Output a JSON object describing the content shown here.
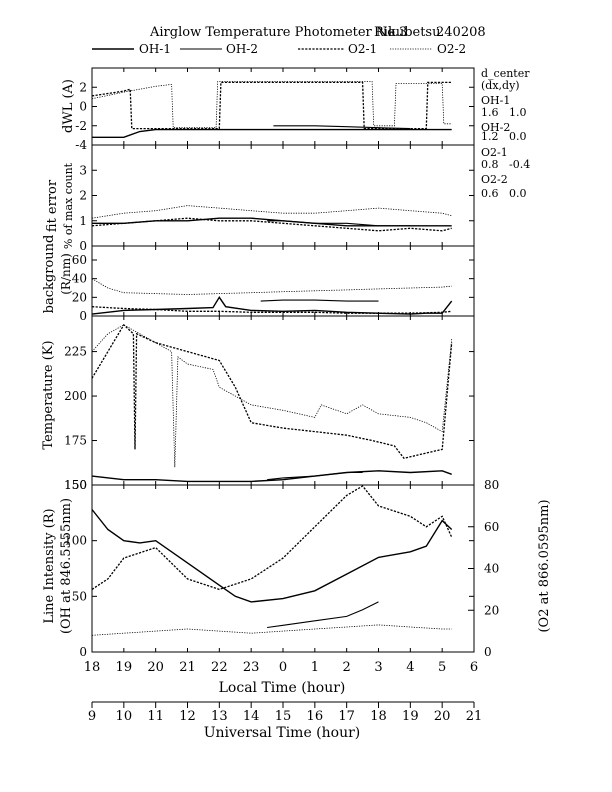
{
  "header": {
    "title": "Airglow Temperature Photometer No.3",
    "station": "Rikubetsu",
    "date": "240208"
  },
  "legend": [
    {
      "name": "OH-1",
      "style": "solid-thick"
    },
    {
      "name": "OH-2",
      "style": "solid-thin"
    },
    {
      "name": "O2-1",
      "style": "dashed"
    },
    {
      "name": "O2-2",
      "style": "dotted"
    }
  ],
  "side_info": {
    "heading1": "d_center",
    "heading2": "(dx,dy)",
    "rows": [
      {
        "label": "OH-1",
        "value": "1.6   1.0"
      },
      {
        "label": "OH-2",
        "value": "1.2   0.0"
      },
      {
        "label": "O2-1",
        "value": "0.8   -0.4"
      },
      {
        "label": "O2-2",
        "value": "0.6   0.0"
      }
    ]
  },
  "axes": {
    "lt_label": "Local Time (hour)",
    "ut_label": "Universal Time (hour)",
    "lt_ticks": [
      "18",
      "19",
      "20",
      "21",
      "22",
      "23",
      "0",
      "1",
      "2",
      "3",
      "4",
      "5",
      "6"
    ],
    "ut_ticks": [
      "9",
      "10",
      "11",
      "12",
      "13",
      "14",
      "15",
      "16",
      "17",
      "18",
      "19",
      "20",
      "21"
    ]
  },
  "chart_data": [
    {
      "type": "line",
      "panel": "dWL",
      "ylabel": "dWL (A)",
      "ylim": [
        -4,
        4
      ],
      "yticks": [
        "2",
        "0",
        "-2",
        "-4"
      ],
      "x_unit": "local time hour (18 = 18 LT, 30 = 06 LT)",
      "series": [
        {
          "name": "OH-1",
          "x": [
            18.0,
            19.0,
            19.5,
            20.0,
            21.0,
            22.0,
            23.0,
            24.0,
            25.0,
            26.0,
            27.0,
            28.0,
            29.0,
            29.3
          ],
          "y": [
            -3.2,
            -3.2,
            -2.6,
            -2.4,
            -2.4,
            -2.4,
            -2.4,
            -2.4,
            -2.4,
            -2.4,
            -2.4,
            -2.4,
            -2.4,
            -2.4
          ]
        },
        {
          "name": "OH-2",
          "x": [
            23.7,
            24.0,
            25.0,
            26.0,
            27.0,
            28.0
          ],
          "y": [
            -2.0,
            -2.0,
            -2.0,
            -2.1,
            -2.2,
            -2.3
          ]
        },
        {
          "name": "O2-1",
          "x": [
            18.0,
            19.0,
            19.2,
            19.25,
            20.0,
            21.0,
            21.8,
            22.0,
            22.05,
            23.0,
            24.0,
            25.0,
            26.0,
            26.5,
            26.55,
            27.0,
            28.0,
            28.5,
            28.55,
            29.0,
            29.3
          ],
          "y": [
            1.1,
            1.6,
            1.8,
            -2.3,
            -2.3,
            -2.3,
            -2.3,
            -2.3,
            2.5,
            2.5,
            2.5,
            2.5,
            2.5,
            2.5,
            -2.3,
            -2.3,
            -2.3,
            -2.3,
            2.5,
            2.5,
            2.5
          ]
        },
        {
          "name": "O2-2",
          "x": [
            18.0,
            19.0,
            20.0,
            20.5,
            20.55,
            21.0,
            21.9,
            21.95,
            23.0,
            24.0,
            25.0,
            26.0,
            26.8,
            26.85,
            27.5,
            27.55,
            28.0,
            29.0,
            29.05,
            29.3
          ],
          "y": [
            0.8,
            1.5,
            2.1,
            2.3,
            -2.2,
            -2.2,
            -2.2,
            2.6,
            2.6,
            2.6,
            2.6,
            2.6,
            2.6,
            -2.0,
            -2.0,
            2.4,
            2.4,
            2.4,
            -1.8,
            -1.8
          ]
        }
      ]
    },
    {
      "type": "line",
      "panel": "fit-error",
      "ylabel": "fit error",
      "ylabel2": "% of max count",
      "ylim": [
        0,
        4
      ],
      "yticks": [
        "3",
        "2",
        "1",
        "0"
      ],
      "series": [
        {
          "name": "OH-1",
          "x": [
            18.0,
            19.0,
            20.0,
            21.0,
            22.0,
            23.0,
            24.0,
            25.0,
            26.0,
            27.0,
            28.0,
            29.0,
            29.3
          ],
          "y": [
            0.9,
            0.9,
            1.0,
            1.0,
            1.1,
            1.1,
            1.0,
            0.9,
            0.8,
            0.8,
            0.8,
            0.8,
            0.8
          ]
        },
        {
          "name": "OH-2",
          "x": [
            23.5,
            24.0,
            25.0,
            26.0,
            27.0,
            28.0
          ],
          "y": [
            1.0,
            1.0,
            0.9,
            0.9,
            0.8,
            0.8
          ]
        },
        {
          "name": "O2-1",
          "x": [
            18.0,
            19.0,
            20.0,
            21.0,
            22.0,
            23.0,
            24.0,
            25.0,
            26.0,
            27.0,
            28.0,
            29.0,
            29.3
          ],
          "y": [
            0.8,
            0.9,
            1.0,
            1.1,
            1.0,
            1.0,
            0.9,
            0.8,
            0.7,
            0.6,
            0.7,
            0.6,
            0.7
          ]
        },
        {
          "name": "O2-2",
          "x": [
            18.0,
            19.0,
            20.0,
            21.0,
            22.0,
            23.0,
            24.0,
            25.0,
            26.0,
            27.0,
            28.0,
            29.0,
            29.3
          ],
          "y": [
            1.1,
            1.3,
            1.4,
            1.6,
            1.5,
            1.4,
            1.3,
            1.3,
            1.4,
            1.5,
            1.4,
            1.3,
            1.2
          ]
        }
      ]
    },
    {
      "type": "line",
      "panel": "background",
      "ylabel": "background",
      "ylabel2": "(R/nm)",
      "ylim": [
        0,
        75
      ],
      "yticks": [
        "60",
        "40",
        "20",
        "0"
      ],
      "series": [
        {
          "name": "OH-1",
          "x": [
            18.0,
            19.0,
            20.0,
            21.0,
            21.8,
            22.0,
            22.2,
            23.0,
            24.0,
            25.0,
            26.0,
            27.0,
            28.0,
            28.5,
            29.0,
            29.3
          ],
          "y": [
            2,
            6,
            7,
            8,
            9,
            20,
            10,
            6,
            5,
            6,
            4,
            3,
            2,
            3,
            3,
            16
          ]
        },
        {
          "name": "OH-2",
          "x": [
            23.3,
            24.0,
            25.0,
            26.0,
            26.5,
            27.0
          ],
          "y": [
            16,
            17,
            17,
            16,
            16,
            16
          ]
        },
        {
          "name": "O2-1",
          "x": [
            18.0,
            19.0,
            20.0,
            21.0,
            22.0,
            23.0,
            24.0,
            25.0,
            26.0,
            27.0,
            28.0,
            29.0,
            29.3
          ],
          "y": [
            10,
            8,
            7,
            5,
            5,
            4,
            4,
            4,
            3,
            3,
            3,
            4,
            5
          ]
        },
        {
          "name": "O2-2",
          "x": [
            18.0,
            18.5,
            19.0,
            20.0,
            21.0,
            22.0,
            23.0,
            24.0,
            25.0,
            26.0,
            27.0,
            28.0,
            29.0,
            29.3
          ],
          "y": [
            40,
            30,
            25,
            24,
            23,
            24,
            25,
            26,
            27,
            28,
            29,
            30,
            31,
            32
          ]
        }
      ]
    },
    {
      "type": "line",
      "panel": "temperature",
      "ylabel": "Temperature (K)",
      "ylim": [
        150,
        245
      ],
      "yticks": [
        "225",
        "200",
        "175",
        "150"
      ],
      "series": [
        {
          "name": "OH-1",
          "x": [
            18.0,
            19.0,
            20.0,
            21.0,
            22.0,
            23.0,
            24.0,
            25.0,
            26.0,
            27.0,
            28.0,
            29.0,
            29.3
          ],
          "y": [
            155,
            153,
            153,
            152,
            152,
            152,
            153,
            155,
            157,
            158,
            157,
            158,
            156
          ]
        },
        {
          "name": "OH-2",
          "x": [
            23.5,
            24.0,
            25.0,
            26.0,
            26.5
          ],
          "y": [
            153,
            154,
            155,
            157,
            157
          ]
        },
        {
          "name": "O2-1",
          "x": [
            18.0,
            18.5,
            19.0,
            19.3,
            19.35,
            19.4,
            20.0,
            21.0,
            22.0,
            22.5,
            23.0,
            24.0,
            25.0,
            26.0,
            26.8,
            27.5,
            27.8,
            28.5,
            29.0,
            29.3
          ],
          "y": [
            210,
            225,
            240,
            235,
            170,
            235,
            230,
            225,
            220,
            205,
            185,
            182,
            180,
            178,
            175,
            172,
            165,
            168,
            170,
            230
          ]
        },
        {
          "name": "O2-2",
          "x": [
            18.0,
            18.5,
            19.0,
            19.5,
            20.0,
            20.5,
            20.6,
            20.7,
            21.0,
            21.8,
            22.0,
            23.0,
            24.0,
            25.0,
            25.2,
            26.0,
            26.5,
            27.0,
            28.0,
            28.5,
            29.0,
            29.3
          ],
          "y": [
            225,
            235,
            240,
            235,
            230,
            225,
            160,
            222,
            218,
            215,
            205,
            195,
            192,
            188,
            195,
            190,
            195,
            190,
            188,
            185,
            180,
            232
          ]
        }
      ]
    },
    {
      "type": "line",
      "panel": "intensity",
      "ylabel": "Line Intensity (R)",
      "ylabel2": "(OH at 846.5555nm)",
      "ylabel_right": "(O2 at 866.0595nm)",
      "ylim": [
        0,
        150
      ],
      "yticks": [
        "150",
        "100",
        "50",
        "0"
      ],
      "y2lim": [
        0,
        80
      ],
      "y2ticks": [
        "80",
        "60",
        "40",
        "20",
        "0"
      ],
      "series": [
        {
          "name": "OH-1",
          "axis": "left",
          "x": [
            18.0,
            18.5,
            19.0,
            19.5,
            20.0,
            21.0,
            22.0,
            22.5,
            23.0,
            24.0,
            25.0,
            26.0,
            27.0,
            28.0,
            28.5,
            29.0,
            29.3
          ],
          "y": [
            128,
            110,
            100,
            98,
            100,
            80,
            60,
            50,
            45,
            48,
            55,
            70,
            85,
            90,
            95,
            118,
            110
          ]
        },
        {
          "name": "OH-2",
          "axis": "left",
          "x": [
            23.5,
            24.0,
            25.0,
            26.0,
            26.5,
            27.0
          ],
          "y": [
            22,
            24,
            28,
            32,
            38,
            45
          ]
        },
        {
          "name": "O2-1",
          "axis": "right",
          "x": [
            18.0,
            18.5,
            19.0,
            20.0,
            21.0,
            22.0,
            23.0,
            24.0,
            25.0,
            26.0,
            26.5,
            27.0,
            28.0,
            28.5,
            29.0,
            29.3
          ],
          "y": [
            30,
            35,
            45,
            50,
            35,
            30,
            35,
            45,
            60,
            75,
            80,
            70,
            65,
            60,
            65,
            55
          ]
        },
        {
          "name": "O2-2",
          "axis": "right",
          "x": [
            18.0,
            19.0,
            20.0,
            21.0,
            22.0,
            23.0,
            24.0,
            25.0,
            26.0,
            27.0,
            28.0,
            29.0,
            29.3
          ],
          "y": [
            8,
            9,
            10,
            11,
            10,
            9,
            10,
            11,
            12,
            13,
            12,
            11,
            11
          ]
        }
      ]
    }
  ]
}
